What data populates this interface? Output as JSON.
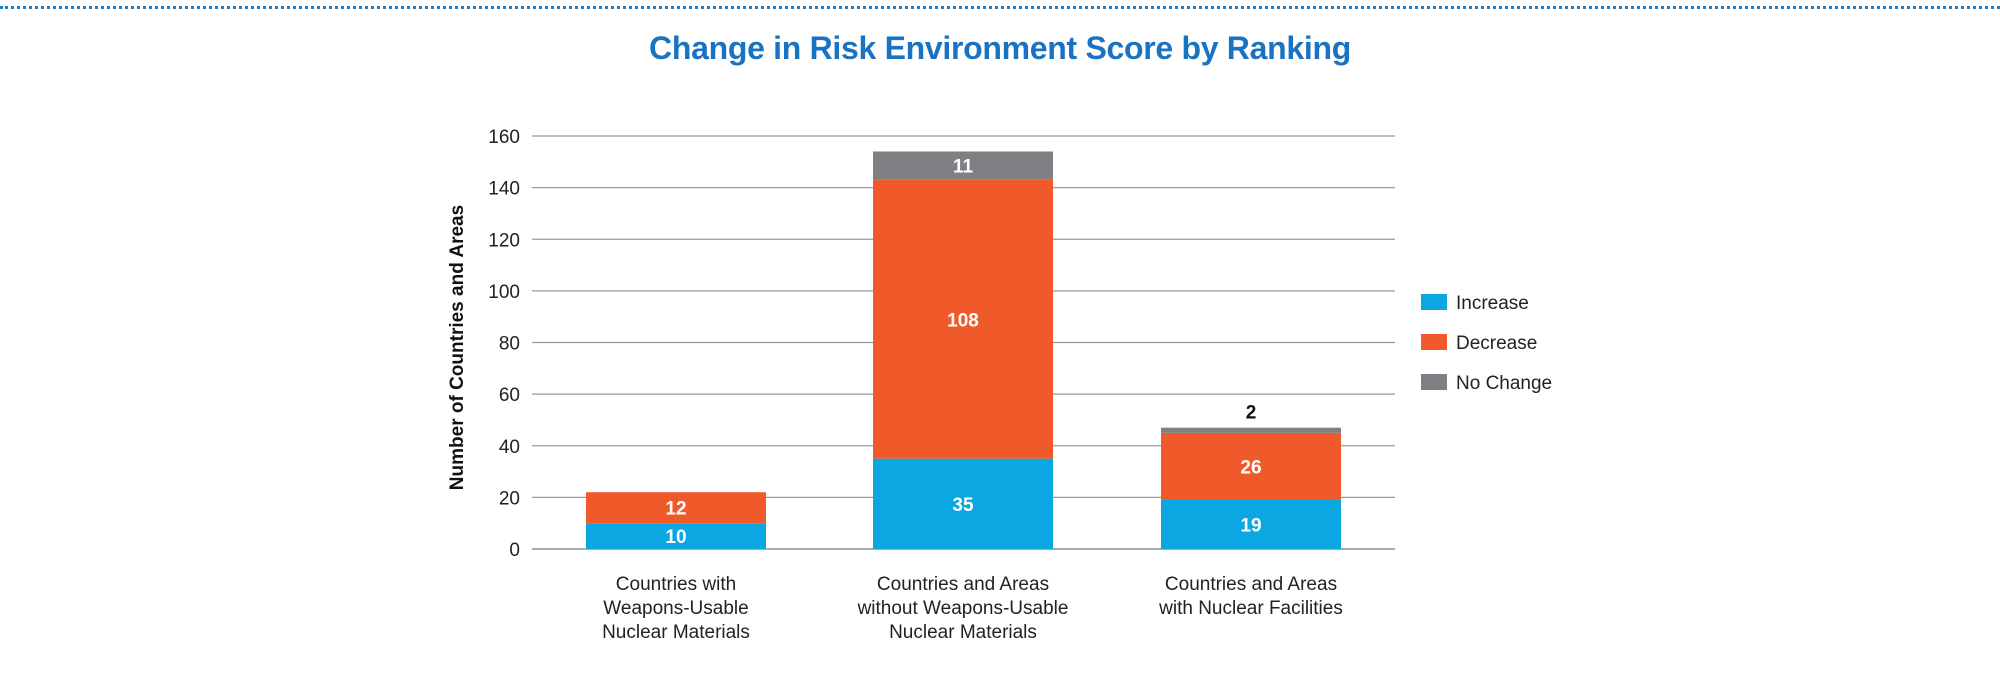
{
  "chart_data": {
    "type": "bar",
    "stacked": true,
    "title": "Change in Risk Environment Score by Ranking",
    "ylabel": "Number of Countries and Areas",
    "xlabel": "",
    "ylim": [
      0,
      160
    ],
    "yticks": [
      0,
      20,
      40,
      60,
      80,
      100,
      120,
      140,
      160
    ],
    "grid": true,
    "legend_position": "right",
    "categories": [
      [
        "Countries with",
        "Weapons-Usable",
        "Nuclear Materials"
      ],
      [
        "Countries and Areas",
        "without Weapons-Usable",
        "Nuclear Materials"
      ],
      [
        "Countries and Areas",
        "with Nuclear Facilities"
      ]
    ],
    "series": [
      {
        "name": "Increase",
        "color": "#0aa7e2",
        "values": [
          10,
          35,
          19
        ]
      },
      {
        "name": "Decrease",
        "color": "#f05a2a",
        "values": [
          12,
          108,
          26
        ]
      },
      {
        "name": "No Change",
        "color": "#808084",
        "values": [
          0,
          11,
          2
        ]
      }
    ]
  }
}
